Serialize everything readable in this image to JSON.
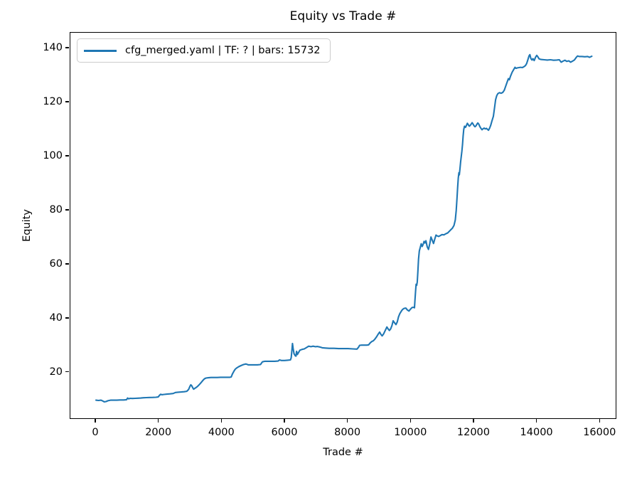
{
  "figure": {
    "title": "Equity vs Trade #"
  },
  "legend": {
    "label": "cfg_merged.yaml | TF: ? | bars: 15732",
    "line_color": "#1f77b4"
  },
  "chart_data": {
    "type": "line",
    "title": "Equity vs Trade #",
    "xlabel": "Trade #",
    "ylabel": "Equity",
    "xlim": [
      -812,
      16535
    ],
    "ylim": [
      2.6,
      145.8
    ],
    "x_ticks": [
      0,
      2000,
      4000,
      6000,
      8000,
      10000,
      12000,
      14000,
      16000
    ],
    "y_ticks": [
      20,
      40,
      60,
      80,
      100,
      120,
      140
    ],
    "grid": false,
    "legend_position": "upper-left",
    "axis_color": "#000000",
    "series": [
      {
        "name": "cfg_merged.yaml | TF: ? | bars: 15732",
        "color": "#1f77b4",
        "points": [
          [
            0,
            9.8
          ],
          [
            80,
            9.7
          ],
          [
            160,
            9.8
          ],
          [
            220,
            9.5
          ],
          [
            260,
            9.2
          ],
          [
            320,
            9.3
          ],
          [
            380,
            9.6
          ],
          [
            460,
            9.8
          ],
          [
            560,
            9.8
          ],
          [
            660,
            9.8
          ],
          [
            760,
            9.9
          ],
          [
            880,
            9.9
          ],
          [
            970,
            10.0
          ],
          [
            1005,
            10.6
          ],
          [
            1040,
            10.3
          ],
          [
            1080,
            10.5
          ],
          [
            1160,
            10.45
          ],
          [
            1240,
            10.5
          ],
          [
            1330,
            10.55
          ],
          [
            1420,
            10.6
          ],
          [
            1510,
            10.7
          ],
          [
            1600,
            10.75
          ],
          [
            1700,
            10.8
          ],
          [
            1800,
            10.85
          ],
          [
            1900,
            10.9
          ],
          [
            1975,
            11.0
          ],
          [
            2015,
            11.6
          ],
          [
            2050,
            12.0
          ],
          [
            2090,
            11.85
          ],
          [
            2160,
            11.95
          ],
          [
            2250,
            12.05
          ],
          [
            2350,
            12.15
          ],
          [
            2450,
            12.3
          ],
          [
            2520,
            12.65
          ],
          [
            2600,
            12.75
          ],
          [
            2700,
            12.85
          ],
          [
            2800,
            12.95
          ],
          [
            2880,
            13.1
          ],
          [
            2940,
            13.8
          ],
          [
            2980,
            14.9
          ],
          [
            3010,
            15.5
          ],
          [
            3040,
            15.1
          ],
          [
            3070,
            14.4
          ],
          [
            3100,
            13.9
          ],
          [
            3140,
            14.2
          ],
          [
            3190,
            14.6
          ],
          [
            3240,
            15.1
          ],
          [
            3290,
            15.7
          ],
          [
            3340,
            16.4
          ],
          [
            3390,
            17.1
          ],
          [
            3440,
            17.7
          ],
          [
            3490,
            18.0
          ],
          [
            3560,
            18.1
          ],
          [
            3650,
            18.2
          ],
          [
            3750,
            18.2
          ],
          [
            3850,
            18.2
          ],
          [
            3950,
            18.3
          ],
          [
            4050,
            18.3
          ],
          [
            4150,
            18.3
          ],
          [
            4250,
            18.3
          ],
          [
            4290,
            18.4
          ],
          [
            4330,
            19.5
          ],
          [
            4380,
            20.6
          ],
          [
            4420,
            21.3
          ],
          [
            4470,
            21.8
          ],
          [
            4530,
            22.2
          ],
          [
            4600,
            22.6
          ],
          [
            4680,
            23.0
          ],
          [
            4760,
            23.2
          ],
          [
            4830,
            22.9
          ],
          [
            4920,
            22.9
          ],
          [
            5020,
            22.9
          ],
          [
            5120,
            22.9
          ],
          [
            5220,
            23.0
          ],
          [
            5280,
            24.0
          ],
          [
            5360,
            24.2
          ],
          [
            5460,
            24.2
          ],
          [
            5560,
            24.2
          ],
          [
            5670,
            24.2
          ],
          [
            5780,
            24.3
          ],
          [
            5825,
            24.7
          ],
          [
            5880,
            24.5
          ],
          [
            5980,
            24.5
          ],
          [
            6080,
            24.6
          ],
          [
            6170,
            24.7
          ],
          [
            6195,
            25.5
          ],
          [
            6215,
            28.0
          ],
          [
            6235,
            30.8
          ],
          [
            6255,
            29.0
          ],
          [
            6285,
            27.0
          ],
          [
            6320,
            26.3
          ],
          [
            6345,
            26.1
          ],
          [
            6365,
            27.9
          ],
          [
            6390,
            26.7
          ],
          [
            6425,
            27.4
          ],
          [
            6470,
            28.3
          ],
          [
            6540,
            28.6
          ],
          [
            6610,
            28.8
          ],
          [
            6680,
            29.3
          ],
          [
            6750,
            29.8
          ],
          [
            6820,
            29.6
          ],
          [
            6890,
            29.8
          ],
          [
            6960,
            29.6
          ],
          [
            7030,
            29.7
          ],
          [
            7100,
            29.5
          ],
          [
            7180,
            29.2
          ],
          [
            7280,
            29.1
          ],
          [
            7400,
            29.0
          ],
          [
            7550,
            29.0
          ],
          [
            7700,
            28.9
          ],
          [
            7850,
            28.9
          ],
          [
            8000,
            28.9
          ],
          [
            8150,
            28.8
          ],
          [
            8280,
            28.7
          ],
          [
            8330,
            29.4
          ],
          [
            8365,
            30.1
          ],
          [
            8430,
            30.2
          ],
          [
            8510,
            30.2
          ],
          [
            8590,
            30.2
          ],
          [
            8650,
            30.3
          ],
          [
            8700,
            31.0
          ],
          [
            8750,
            31.5
          ],
          [
            8800,
            31.8
          ],
          [
            8850,
            32.4
          ],
          [
            8900,
            33.2
          ],
          [
            8950,
            34.2
          ],
          [
            9000,
            35.0
          ],
          [
            9040,
            34.2
          ],
          [
            9080,
            33.6
          ],
          [
            9130,
            34.4
          ],
          [
            9180,
            35.6
          ],
          [
            9230,
            36.9
          ],
          [
            9270,
            36.2
          ],
          [
            9310,
            35.6
          ],
          [
            9350,
            36.2
          ],
          [
            9390,
            37.4
          ],
          [
            9430,
            39.2
          ],
          [
            9470,
            38.5
          ],
          [
            9520,
            37.8
          ],
          [
            9560,
            38.8
          ],
          [
            9600,
            40.7
          ],
          [
            9640,
            41.8
          ],
          [
            9690,
            42.8
          ],
          [
            9730,
            43.4
          ],
          [
            9780,
            43.8
          ],
          [
            9830,
            43.9
          ],
          [
            9880,
            43.2
          ],
          [
            9930,
            42.8
          ],
          [
            9980,
            43.5
          ],
          [
            10030,
            44.1
          ],
          [
            10080,
            44.2
          ],
          [
            10105,
            44.0
          ],
          [
            10120,
            46.5
          ],
          [
            10140,
            50.0
          ],
          [
            10158,
            52.7
          ],
          [
            10175,
            52.3
          ],
          [
            10195,
            53.5
          ],
          [
            10215,
            57.5
          ],
          [
            10235,
            62.0
          ],
          [
            10260,
            65.0
          ],
          [
            10290,
            66.4
          ],
          [
            10320,
            67.7
          ],
          [
            10350,
            66.7
          ],
          [
            10380,
            67.4
          ],
          [
            10410,
            68.6
          ],
          [
            10440,
            68.0
          ],
          [
            10470,
            68.8
          ],
          [
            10510,
            66.6
          ],
          [
            10550,
            65.6
          ],
          [
            10590,
            67.7
          ],
          [
            10630,
            70.2
          ],
          [
            10670,
            69.0
          ],
          [
            10710,
            67.8
          ],
          [
            10750,
            69.4
          ],
          [
            10790,
            70.9
          ],
          [
            10830,
            70.6
          ],
          [
            10870,
            70.4
          ],
          [
            10920,
            70.7
          ],
          [
            10980,
            71.1
          ],
          [
            11040,
            71.0
          ],
          [
            11100,
            71.4
          ],
          [
            11160,
            71.7
          ],
          [
            11220,
            72.4
          ],
          [
            11260,
            72.9
          ],
          [
            11310,
            73.5
          ],
          [
            11360,
            74.5
          ],
          [
            11400,
            76.5
          ],
          [
            11430,
            80.0
          ],
          [
            11455,
            84.5
          ],
          [
            11475,
            88.5
          ],
          [
            11495,
            92.0
          ],
          [
            11515,
            94.0
          ],
          [
            11530,
            93.2
          ],
          [
            11550,
            95.5
          ],
          [
            11570,
            98.0
          ],
          [
            11590,
            100.0
          ],
          [
            11610,
            102.0
          ],
          [
            11630,
            104.5
          ],
          [
            11650,
            107.5
          ],
          [
            11670,
            110.0
          ],
          [
            11695,
            111.2
          ],
          [
            11725,
            110.8
          ],
          [
            11755,
            111.5
          ],
          [
            11785,
            112.3
          ],
          [
            11815,
            111.7
          ],
          [
            11845,
            111.2
          ],
          [
            11875,
            111.5
          ],
          [
            11905,
            112.0
          ],
          [
            11935,
            112.5
          ],
          [
            11965,
            112.0
          ],
          [
            11995,
            111.4
          ],
          [
            12025,
            111.0
          ],
          [
            12055,
            111.3
          ],
          [
            12085,
            111.9
          ],
          [
            12115,
            112.4
          ],
          [
            12145,
            112.0
          ],
          [
            12180,
            111.1
          ],
          [
            12215,
            110.4
          ],
          [
            12250,
            109.9
          ],
          [
            12285,
            110.3
          ],
          [
            12320,
            110.5
          ],
          [
            12355,
            110.2
          ],
          [
            12390,
            110.4
          ],
          [
            12425,
            110.0
          ],
          [
            12455,
            109.7
          ],
          [
            12490,
            110.5
          ],
          [
            12525,
            111.5
          ],
          [
            12560,
            113.0
          ],
          [
            12610,
            114.9
          ],
          [
            12645,
            118.0
          ],
          [
            12680,
            121.0
          ],
          [
            12715,
            122.5
          ],
          [
            12755,
            123.3
          ],
          [
            12805,
            123.6
          ],
          [
            12855,
            123.4
          ],
          [
            12905,
            123.7
          ],
          [
            12955,
            124.5
          ],
          [
            13000,
            126.0
          ],
          [
            13045,
            127.5
          ],
          [
            13085,
            128.8
          ],
          [
            13115,
            128.4
          ],
          [
            13155,
            129.8
          ],
          [
            13205,
            131.2
          ],
          [
            13255,
            132.2
          ],
          [
            13295,
            133.0
          ],
          [
            13325,
            132.6
          ],
          [
            13375,
            132.8
          ],
          [
            13425,
            132.9
          ],
          [
            13475,
            133.0
          ],
          [
            13525,
            132.9
          ],
          [
            13575,
            133.2
          ],
          [
            13625,
            133.6
          ],
          [
            13665,
            134.4
          ],
          [
            13705,
            135.8
          ],
          [
            13740,
            137.2
          ],
          [
            13768,
            137.7
          ],
          [
            13800,
            136.2
          ],
          [
            13835,
            135.7
          ],
          [
            13865,
            136.2
          ],
          [
            13905,
            135.5
          ],
          [
            13950,
            136.8
          ],
          [
            13985,
            137.4
          ],
          [
            14020,
            136.9
          ],
          [
            14060,
            136.1
          ],
          [
            14120,
            135.9
          ],
          [
            14220,
            135.8
          ],
          [
            14320,
            135.7
          ],
          [
            14420,
            135.8
          ],
          [
            14520,
            135.6
          ],
          [
            14620,
            135.7
          ],
          [
            14700,
            135.8
          ],
          [
            14760,
            134.9
          ],
          [
            14820,
            135.3
          ],
          [
            14880,
            135.6
          ],
          [
            14940,
            135.2
          ],
          [
            15000,
            135.4
          ],
          [
            15060,
            134.9
          ],
          [
            15120,
            135.3
          ],
          [
            15180,
            135.7
          ],
          [
            15240,
            136.7
          ],
          [
            15280,
            137.2
          ],
          [
            15330,
            137.0
          ],
          [
            15420,
            137.0
          ],
          [
            15510,
            136.9
          ],
          [
            15600,
            137.0
          ],
          [
            15660,
            136.7
          ],
          [
            15732,
            137.1
          ]
        ]
      }
    ]
  }
}
